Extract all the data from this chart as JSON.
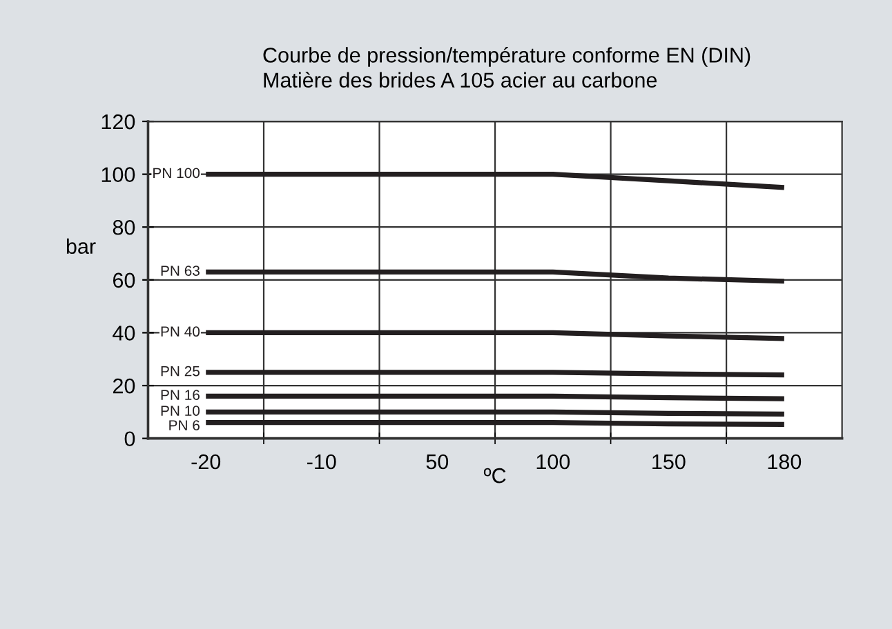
{
  "chart_data": {
    "type": "line",
    "title": "Courbe de pression/température conforme EN (DIN)\nMatière des brides A 105 acier au carbone",
    "xlabel": "ºC",
    "ylabel": "bar",
    "categories": [
      "-20",
      "-10",
      "50",
      "100",
      "150",
      "180"
    ],
    "ylim": [
      0,
      120
    ],
    "yticks": [
      0,
      20,
      40,
      60,
      80,
      100,
      120
    ],
    "grid": true,
    "legend": false,
    "marker": "none",
    "line_style": "solid",
    "series": [
      {
        "name": "PN 100",
        "color": "#231f20",
        "values": [
          100,
          100,
          100,
          100,
          97.5,
          95
        ]
      },
      {
        "name": "PN 63",
        "color": "#231f20",
        "values": [
          63,
          63,
          63,
          63,
          60.7,
          59.5
        ]
      },
      {
        "name": "PN 40",
        "color": "#231f20",
        "values": [
          40,
          40,
          40,
          40,
          38.8,
          37.8
        ]
      },
      {
        "name": "PN 25",
        "color": "#231f20",
        "values": [
          25,
          25,
          25,
          25,
          24.4,
          24
        ]
      },
      {
        "name": "PN 16",
        "color": "#231f20",
        "values": [
          16,
          16,
          16,
          16,
          15.4,
          15
        ]
      },
      {
        "name": "PN 10",
        "color": "#231f20",
        "values": [
          10,
          10,
          10,
          10,
          9.5,
          9.2
        ]
      },
      {
        "name": "PN 6",
        "color": "#231f20",
        "values": [
          6,
          6,
          6,
          6,
          5.5,
          5.3
        ]
      }
    ]
  }
}
